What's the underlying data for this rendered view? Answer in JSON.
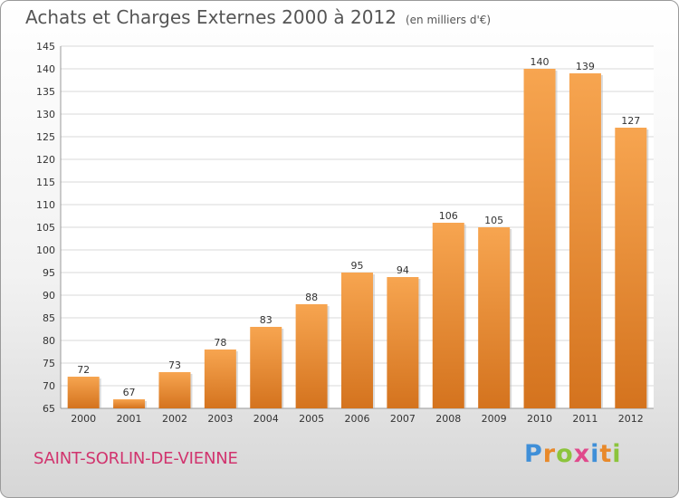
{
  "header": {
    "title": "Achats et Charges Externes 2000 à 2012",
    "unit": "(en milliers d'€)"
  },
  "footer": {
    "city": "SAINT-SORLIN-DE-VIENNE",
    "logo_letters": [
      "P",
      "r",
      "o",
      "x",
      "i",
      "t",
      "i"
    ],
    "logo_colors": [
      "#3f8fd8",
      "#e8892a",
      "#8cc43c",
      "#e04a8c",
      "#3f8fd8",
      "#e8892a",
      "#8cc43c"
    ]
  },
  "chart_data": {
    "type": "bar",
    "title": "Achats et Charges Externes 2000 à 2012",
    "subtitle": "(en milliers d'€)",
    "categories": [
      "2000",
      "2001",
      "2002",
      "2003",
      "2004",
      "2005",
      "2006",
      "2007",
      "2008",
      "2009",
      "2010",
      "2011",
      "2012"
    ],
    "values": [
      72,
      67,
      73,
      78,
      83,
      88,
      95,
      94,
      106,
      105,
      140,
      139,
      127
    ],
    "data_labels": [
      "72",
      "67",
      "73",
      "78",
      "83",
      "88",
      "95",
      "94",
      "106",
      "105",
      "140",
      "139",
      "127"
    ],
    "y_ticks": [
      "65",
      "70",
      "75",
      "80",
      "85",
      "90",
      "95",
      "100",
      "105",
      "110",
      "115",
      "120",
      "125",
      "130",
      "135",
      "140",
      "145"
    ],
    "ylim": [
      65,
      145
    ],
    "grid": true,
    "bar_color_top": "#f7a550",
    "bar_color_bottom": "#d4731e"
  }
}
